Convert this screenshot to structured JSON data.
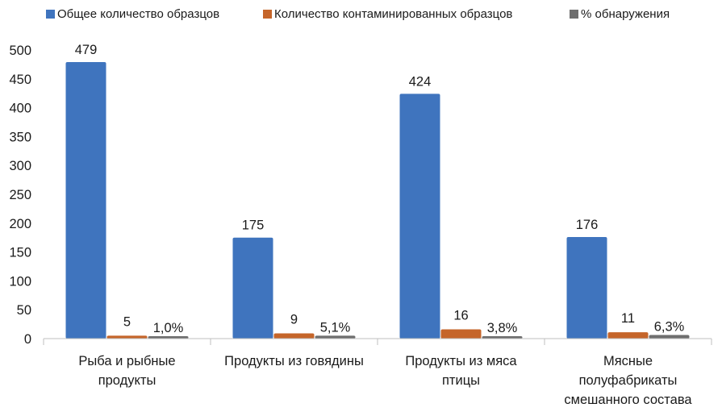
{
  "chart_data": {
    "type": "bar",
    "categories": [
      [
        "Рыба и рыбные",
        "продукты"
      ],
      [
        "Продукты из говядины"
      ],
      [
        "Продукты из мяса",
        "птицы"
      ],
      [
        "Мясные",
        "полуфабрикаты",
        "смешанного состава"
      ]
    ],
    "series": [
      {
        "name": "Общее количество образцов",
        "color": "#3f74be",
        "values": [
          479,
          175,
          424,
          176
        ],
        "labels": [
          "479",
          "175",
          "424",
          "176"
        ]
      },
      {
        "name": "Количество контаминированных образцов",
        "color": "#c5652a",
        "values": [
          5,
          9,
          16,
          11
        ],
        "labels": [
          "5",
          "9",
          "16",
          "11"
        ]
      },
      {
        "name": "% обнаружения",
        "color": "#6e6e6e",
        "values": [
          1.0,
          5.1,
          3.8,
          6.3
        ],
        "labels": [
          "1,0%",
          "5,1%",
          "3,8%",
          "6,3%"
        ]
      }
    ],
    "ylim": [
      0,
      500
    ],
    "yticks": [
      0,
      50,
      100,
      150,
      200,
      250,
      300,
      350,
      400,
      450,
      500
    ],
    "grid": false,
    "legend_position": "top"
  }
}
